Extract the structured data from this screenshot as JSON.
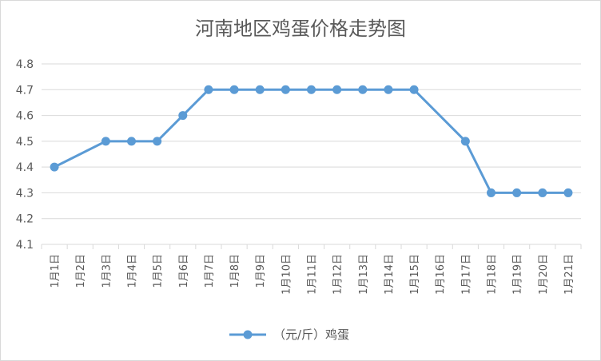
{
  "chart_data": {
    "type": "line",
    "title": "河南地区鸡蛋价格走势图",
    "categories": [
      "1月1日",
      "1月2日",
      "1月3日",
      "1月4日",
      "1月5日",
      "1月6日",
      "1月7日",
      "1月8日",
      "1月9日",
      "1月10日",
      "1月11日",
      "1月12日",
      "1月13日",
      "1月14日",
      "1月15日",
      "1月16日",
      "1月17日",
      "1月18日",
      "1月19日",
      "1月20日",
      "1月21日"
    ],
    "series": [
      {
        "name": "（元/斤）鸡蛋",
        "values": [
          4.4,
          null,
          4.5,
          4.5,
          4.5,
          4.6,
          4.7,
          4.7,
          4.7,
          4.7,
          4.7,
          4.7,
          4.7,
          4.7,
          4.7,
          null,
          4.5,
          4.3,
          4.3,
          4.3,
          4.3
        ]
      }
    ],
    "ylim": [
      4.1,
      4.8
    ],
    "yticks": [
      4.1,
      4.2,
      4.3,
      4.4,
      4.5,
      4.6,
      4.7,
      4.8
    ],
    "grid": true,
    "legend_position": "bottom",
    "colors": {
      "series": "#5b9bd5",
      "grid": "#d9d9d9",
      "text": "#595959"
    }
  }
}
